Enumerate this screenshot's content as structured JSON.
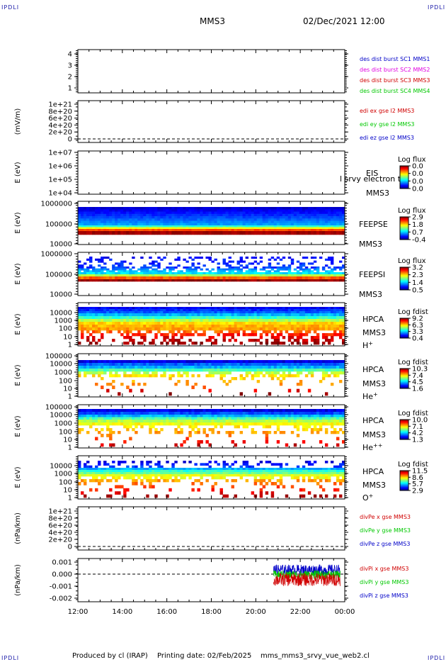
{
  "corners": {
    "tl": "IPDLI",
    "tr": "IPDLI",
    "bl": "IPDLI",
    "br": "IPDLI"
  },
  "header": {
    "mission": "MMS3",
    "date": "02/Dec/2021 12:00"
  },
  "footer": {
    "produced_by": "Produced by cl (IRAP)",
    "printing_date": "Printing date: 02/Feb/2025",
    "filename": "mms_mms3_srvy_vue_web2.cl"
  },
  "colors": {
    "c1": "#0000c8",
    "c2": "#e000e0",
    "c3": "#d00000",
    "c4": "#00c800",
    "x": "#d00000",
    "y": "#00c800",
    "z": "#0000c8"
  },
  "chart_data": [
    {
      "panel": "des-dist-burst",
      "type": "line",
      "yticks": [
        "1",
        "2",
        "3",
        "4"
      ],
      "ylabel": "",
      "legend": [
        {
          "text": "des dist burst SC1 MMS1",
          "color": "#0000c8"
        },
        {
          "text": "des dist burst SC2 MMS2",
          "color": "#e000e0"
        },
        {
          "text": "des dist burst SC3 MMS3",
          "color": "#d00000"
        },
        {
          "text": "des dist burst SC4 MMS4",
          "color": "#00c800"
        }
      ]
    },
    {
      "panel": "edi-e",
      "type": "line",
      "ylabel": "(mV/m)",
      "yticks": [
        "0",
        "2e+20",
        "4e+20",
        "6e+20",
        "8e+20",
        "1e+21"
      ],
      "legend": [
        {
          "text": "edi ex gse l2 MMS3",
          "color": "#d00000"
        },
        {
          "text": "edi ey gse l2 MMS3",
          "color": "#00c800"
        },
        {
          "text": "edi ez gse l2 MMS3",
          "color": "#0000c8"
        }
      ]
    },
    {
      "panel": "eis",
      "type": "heatmap",
      "ylabel": "E (eV)",
      "yticks": [
        "1e+04",
        "1e+05",
        "1e+06",
        "1e+07"
      ],
      "instrument": "EIS",
      "overlay": "l srvy electron to",
      "sc": "MMS3",
      "cbar_title": "Log flux",
      "cbar_ticks": [
        "0.0",
        "0.0",
        "0.0",
        "0.0"
      ]
    },
    {
      "panel": "feepse",
      "type": "heatmap",
      "ylabel": "E (eV)",
      "yticks": [
        "10000",
        "100000",
        "1000000"
      ],
      "instrument": "FEEPSE",
      "sc": "MMS3",
      "cbar_title": "Log flux",
      "cbar_ticks": [
        "2.9",
        "1.8",
        "0.7",
        "-0.4"
      ]
    },
    {
      "panel": "feepsi",
      "type": "heatmap",
      "ylabel": "E (eV)",
      "yticks": [
        "10000",
        "100000",
        "1000000"
      ],
      "instrument": "FEEPSI",
      "sc": "MMS3",
      "cbar_title": "Log flux",
      "cbar_ticks": [
        "3.2",
        "2.3",
        "1.4",
        "0.5"
      ]
    },
    {
      "panel": "hpca-h",
      "type": "heatmap",
      "ylabel": "E (eV)",
      "yticks": [
        "1",
        "10",
        "100",
        "1000",
        "10000"
      ],
      "instrument": "HPCA",
      "sc": "MMS3",
      "species": "H",
      "charge": "+",
      "cbar_title": "Log fdist",
      "cbar_ticks": [
        "9.2",
        "6.3",
        "3.3",
        "0.4"
      ]
    },
    {
      "panel": "hpca-he",
      "type": "heatmap",
      "ylabel": "E (eV)",
      "yticks": [
        "1",
        "10",
        "100",
        "1000",
        "10000",
        "100000"
      ],
      "instrument": "HPCA",
      "sc": "MMS3",
      "species": "He",
      "charge": "+",
      "cbar_title": "Log fdist",
      "cbar_ticks": [
        "10.3",
        "7.4",
        "4.5",
        "1.6"
      ]
    },
    {
      "panel": "hpca-hepp",
      "type": "heatmap",
      "ylabel": "E (eV)",
      "yticks": [
        "1",
        "10",
        "100",
        "1000",
        "10000",
        "100000"
      ],
      "instrument": "HPCA",
      "sc": "MMS3",
      "species": "He",
      "charge": "++",
      "cbar_title": "Log fdist",
      "cbar_ticks": [
        "10.0",
        "7.1",
        "4.2",
        "1.3"
      ]
    },
    {
      "panel": "hpca-o",
      "type": "heatmap",
      "ylabel": "E (eV)",
      "yticks": [
        "1",
        "10",
        "100",
        "1000",
        "10000"
      ],
      "instrument": "HPCA",
      "sc": "MMS3",
      "species": "O",
      "charge": "+",
      "cbar_title": "Log fdist",
      "cbar_ticks": [
        "11.5",
        "8.6",
        "5.7",
        "2.9"
      ]
    },
    {
      "panel": "divpe",
      "type": "line",
      "ylabel": "(nPa/km)",
      "yticks": [
        "0",
        "2e+20",
        "4e+20",
        "6e+20",
        "8e+20",
        "1e+21"
      ],
      "legend": [
        {
          "text": "divPe x gse MMS3",
          "color": "#d00000"
        },
        {
          "text": "divPe y gse MMS3",
          "color": "#00c800"
        },
        {
          "text": "divPe z gse MMS3",
          "color": "#0000c8"
        }
      ]
    },
    {
      "panel": "divpi",
      "type": "line",
      "ylabel": "(nPa/km)",
      "yticks": [
        "-0.002",
        "-0.001",
        "0.000",
        "0.001"
      ],
      "ylim": [
        -0.0023,
        0.0013
      ],
      "data_start": "20:48",
      "data_end": "23:48",
      "legend": [
        {
          "text": "divPi x gse MMS3",
          "color": "#d00000"
        },
        {
          "text": "divPi y gse MMS3",
          "color": "#00c800"
        },
        {
          "text": "divPi z gse MMS3",
          "color": "#0000c8"
        }
      ]
    }
  ],
  "xaxis": {
    "ticks": [
      "12:00",
      "14:00",
      "16:00",
      "18:00",
      "20:00",
      "22:00",
      "00:00"
    ]
  }
}
